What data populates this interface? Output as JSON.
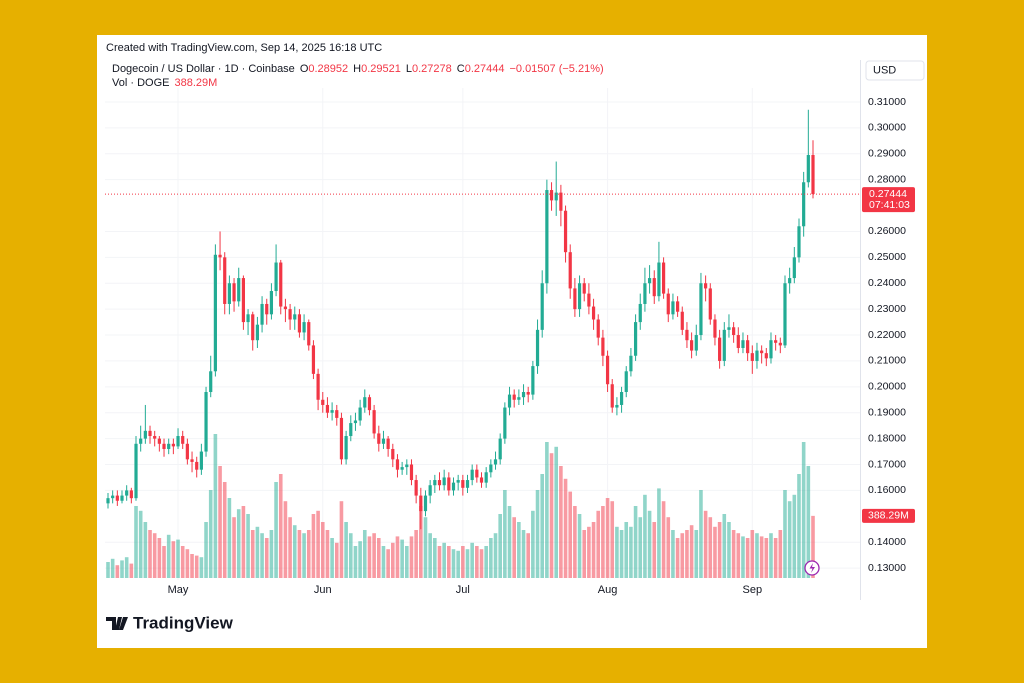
{
  "header": {
    "created": "Created with TradingView.com, Sep 14, 2025 16:18 UTC",
    "brand": "TradingView"
  },
  "legend": {
    "symbol": "Dogecoin / US Dollar · 1D · Coinbase",
    "o": "O",
    "h": "H",
    "l": "L",
    "c": "C",
    "change": "−0.01507 (−5.21%)",
    "vol": "Vol · DOGE",
    "volume_label": "388.29M"
  },
  "currency": "USD",
  "countdown": "07:41:03",
  "chart_data": {
    "type": "candlestick",
    "up_color": "#22ab94",
    "down_color": "#f23645",
    "grid": true,
    "ylim": [
      0.1254,
      0.3154
    ],
    "yticks": [
      {
        "value": 0.13,
        "label": "0.13000"
      },
      {
        "value": 0.14,
        "label": "0.14000"
      },
      {
        "value": 0.16,
        "label": "0.16000"
      },
      {
        "value": 0.17,
        "label": "0.17000"
      },
      {
        "value": 0.18,
        "label": "0.18000"
      },
      {
        "value": 0.19,
        "label": "0.19000"
      },
      {
        "value": 0.2,
        "label": "0.20000"
      },
      {
        "value": 0.21,
        "label": "0.21000"
      },
      {
        "value": 0.22,
        "label": "0.22000"
      },
      {
        "value": 0.23,
        "label": "0.23000"
      },
      {
        "value": 0.24,
        "label": "0.24000"
      },
      {
        "value": 0.25,
        "label": "0.25000"
      },
      {
        "value": 0.26,
        "label": "0.26000"
      },
      {
        "value": 0.28,
        "label": "0.28000"
      },
      {
        "value": 0.29,
        "label": "0.29000"
      },
      {
        "value": 0.3,
        "label": "0.30000"
      },
      {
        "value": 0.31,
        "label": "0.31000"
      }
    ],
    "categories": [
      null,
      null,
      null,
      null,
      null,
      null,
      null,
      null,
      null,
      null,
      null,
      null,
      null,
      null,
      null,
      "May",
      null,
      null,
      null,
      null,
      null,
      null,
      null,
      null,
      null,
      null,
      null,
      null,
      null,
      null,
      null,
      null,
      null,
      null,
      null,
      null,
      null,
      null,
      null,
      null,
      null,
      null,
      null,
      null,
      null,
      null,
      "Jun",
      null,
      null,
      null,
      null,
      null,
      null,
      null,
      null,
      null,
      null,
      null,
      null,
      null,
      null,
      null,
      null,
      null,
      null,
      null,
      null,
      null,
      null,
      null,
      null,
      null,
      null,
      null,
      null,
      null,
      "Jul",
      null,
      null,
      null,
      null,
      null,
      null,
      null,
      null,
      null,
      null,
      null,
      null,
      null,
      null,
      null,
      null,
      null,
      null,
      null,
      null,
      null,
      null,
      null,
      null,
      null,
      null,
      null,
      null,
      null,
      null,
      "Aug",
      null,
      null,
      null,
      null,
      null,
      null,
      null,
      null,
      null,
      null,
      null,
      null,
      null,
      null,
      null,
      null,
      null,
      null,
      null,
      null,
      null,
      null,
      null,
      null,
      null,
      null,
      null,
      null,
      null,
      null,
      "Sep",
      null,
      null,
      null,
      null,
      null,
      null,
      null,
      null,
      null,
      null,
      null,
      null,
      null
    ],
    "open": [
      0.155,
      0.157,
      0.158,
      0.156,
      0.158,
      0.16,
      0.157,
      0.178,
      0.18,
      0.183,
      0.181,
      0.18,
      0.178,
      0.176,
      0.178,
      0.177,
      0.181,
      0.178,
      0.172,
      0.171,
      0.168,
      0.175,
      0.198,
      0.206,
      0.251,
      0.25,
      0.232,
      0.24,
      0.233,
      0.242,
      0.225,
      0.228,
      0.218,
      0.224,
      0.232,
      0.228,
      0.237,
      0.248,
      0.231,
      0.23,
      0.226,
      0.228,
      0.221,
      0.225,
      0.216,
      0.205,
      0.195,
      0.193,
      0.19,
      0.191,
      0.188,
      0.172,
      0.181,
      0.186,
      0.187,
      0.192,
      0.196,
      0.191,
      0.182,
      0.178,
      0.18,
      0.176,
      0.172,
      0.168,
      0.169,
      0.17,
      0.164,
      0.158,
      0.152,
      0.158,
      0.162,
      0.164,
      0.162,
      0.165,
      0.16,
      0.163,
      0.164,
      0.161,
      0.164,
      0.168,
      0.165,
      0.163,
      0.167,
      0.17,
      0.172,
      0.18,
      0.192,
      0.197,
      0.195,
      0.196,
      0.198,
      0.197,
      0.208,
      0.222,
      0.24,
      0.276,
      0.272,
      0.275,
      0.268,
      0.252,
      0.238,
      0.23,
      0.24,
      0.236,
      0.231,
      0.226,
      0.219,
      0.212,
      0.201,
      0.192,
      0.193,
      0.198,
      0.206,
      0.212,
      0.225,
      0.232,
      0.24,
      0.242,
      0.235,
      0.248,
      0.236,
      0.228,
      0.233,
      0.229,
      0.222,
      0.218,
      0.214,
      0.22,
      0.24,
      0.238,
      0.226,
      0.219,
      0.21,
      0.222,
      0.223,
      0.22,
      0.215,
      0.218,
      0.213,
      0.21,
      0.214,
      0.213,
      0.211,
      0.218,
      0.217,
      0.216,
      0.24,
      0.242,
      0.25,
      0.262,
      0.279,
      0.28952
    ],
    "high": [
      0.159,
      0.16,
      0.16,
      0.16,
      0.162,
      0.161,
      0.181,
      0.185,
      0.193,
      0.185,
      0.183,
      0.181,
      0.18,
      0.18,
      0.18,
      0.184,
      0.183,
      0.18,
      0.175,
      0.173,
      0.178,
      0.2,
      0.212,
      0.255,
      0.26,
      0.252,
      0.243,
      0.242,
      0.246,
      0.243,
      0.23,
      0.229,
      0.227,
      0.235,
      0.234,
      0.24,
      0.255,
      0.249,
      0.234,
      0.232,
      0.231,
      0.23,
      0.228,
      0.226,
      0.218,
      0.207,
      0.198,
      0.196,
      0.194,
      0.193,
      0.19,
      0.183,
      0.189,
      0.19,
      0.195,
      0.199,
      0.197,
      0.193,
      0.185,
      0.183,
      0.181,
      0.178,
      0.174,
      0.171,
      0.172,
      0.172,
      0.166,
      0.161,
      0.16,
      0.164,
      0.166,
      0.167,
      0.168,
      0.167,
      0.165,
      0.166,
      0.166,
      0.166,
      0.17,
      0.17,
      0.167,
      0.169,
      0.172,
      0.175,
      0.182,
      0.194,
      0.2,
      0.199,
      0.199,
      0.201,
      0.2,
      0.21,
      0.226,
      0.245,
      0.28,
      0.279,
      0.287,
      0.278,
      0.27,
      0.255,
      0.242,
      0.243,
      0.242,
      0.24,
      0.234,
      0.228,
      0.222,
      0.214,
      0.203,
      0.196,
      0.2,
      0.208,
      0.215,
      0.228,
      0.236,
      0.246,
      0.247,
      0.245,
      0.256,
      0.25,
      0.238,
      0.236,
      0.235,
      0.231,
      0.225,
      0.221,
      0.224,
      0.244,
      0.243,
      0.24,
      0.228,
      0.222,
      0.225,
      0.228,
      0.225,
      0.223,
      0.221,
      0.22,
      0.216,
      0.217,
      0.216,
      0.215,
      0.221,
      0.22,
      0.219,
      0.243,
      0.246,
      0.254,
      0.265,
      0.283,
      0.307,
      0.29521
    ],
    "low": [
      0.153,
      0.155,
      0.154,
      0.155,
      0.156,
      0.155,
      0.156,
      0.175,
      0.178,
      0.178,
      0.177,
      0.175,
      0.173,
      0.174,
      0.174,
      0.176,
      0.176,
      0.17,
      0.167,
      0.165,
      0.166,
      0.173,
      0.196,
      0.204,
      0.245,
      0.228,
      0.228,
      0.229,
      0.231,
      0.222,
      0.22,
      0.214,
      0.215,
      0.221,
      0.224,
      0.226,
      0.235,
      0.228,
      0.225,
      0.222,
      0.222,
      0.219,
      0.218,
      0.214,
      0.203,
      0.191,
      0.19,
      0.188,
      0.187,
      0.185,
      0.17,
      0.17,
      0.179,
      0.183,
      0.185,
      0.19,
      0.189,
      0.18,
      0.175,
      0.176,
      0.173,
      0.169,
      0.165,
      0.166,
      0.166,
      0.162,
      0.155,
      0.145,
      0.15,
      0.155,
      0.159,
      0.16,
      0.16,
      0.158,
      0.158,
      0.16,
      0.158,
      0.159,
      0.162,
      0.163,
      0.161,
      0.161,
      0.165,
      0.168,
      0.17,
      0.178,
      0.189,
      0.192,
      0.193,
      0.193,
      0.194,
      0.195,
      0.205,
      0.219,
      0.236,
      0.268,
      0.266,
      0.262,
      0.248,
      0.234,
      0.227,
      0.227,
      0.233,
      0.228,
      0.222,
      0.216,
      0.208,
      0.198,
      0.19,
      0.189,
      0.19,
      0.196,
      0.204,
      0.21,
      0.222,
      0.229,
      0.236,
      0.232,
      0.233,
      0.234,
      0.225,
      0.226,
      0.227,
      0.22,
      0.215,
      0.211,
      0.212,
      0.218,
      0.233,
      0.224,
      0.216,
      0.207,
      0.208,
      0.219,
      0.217,
      0.213,
      0.213,
      0.21,
      0.205,
      0.207,
      0.209,
      0.208,
      0.209,
      0.214,
      0.213,
      0.215,
      0.236,
      0.24,
      0.248,
      0.258,
      0.277,
      0.27278
    ],
    "close": [
      0.157,
      0.158,
      0.156,
      0.158,
      0.16,
      0.157,
      0.178,
      0.18,
      0.183,
      0.181,
      0.18,
      0.178,
      0.176,
      0.178,
      0.177,
      0.181,
      0.178,
      0.172,
      0.171,
      0.168,
      0.175,
      0.198,
      0.206,
      0.251,
      0.25,
      0.232,
      0.24,
      0.233,
      0.242,
      0.225,
      0.228,
      0.218,
      0.224,
      0.232,
      0.228,
      0.237,
      0.248,
      0.231,
      0.23,
      0.226,
      0.228,
      0.221,
      0.225,
      0.216,
      0.205,
      0.195,
      0.193,
      0.19,
      0.191,
      0.188,
      0.172,
      0.181,
      0.186,
      0.187,
      0.192,
      0.196,
      0.191,
      0.182,
      0.178,
      0.18,
      0.176,
      0.172,
      0.168,
      0.169,
      0.17,
      0.164,
      0.158,
      0.152,
      0.158,
      0.162,
      0.164,
      0.162,
      0.165,
      0.16,
      0.163,
      0.164,
      0.161,
      0.164,
      0.168,
      0.165,
      0.163,
      0.167,
      0.17,
      0.172,
      0.18,
      0.192,
      0.197,
      0.195,
      0.196,
      0.198,
      0.197,
      0.208,
      0.222,
      0.24,
      0.276,
      0.272,
      0.275,
      0.268,
      0.252,
      0.238,
      0.23,
      0.24,
      0.236,
      0.231,
      0.226,
      0.219,
      0.212,
      0.201,
      0.192,
      0.193,
      0.198,
      0.206,
      0.212,
      0.225,
      0.232,
      0.24,
      0.242,
      0.235,
      0.248,
      0.236,
      0.228,
      0.233,
      0.229,
      0.222,
      0.218,
      0.214,
      0.22,
      0.24,
      0.238,
      0.226,
      0.219,
      0.21,
      0.222,
      0.223,
      0.22,
      0.215,
      0.218,
      0.213,
      0.21,
      0.214,
      0.213,
      0.211,
      0.218,
      0.217,
      0.216,
      0.24,
      0.242,
      0.25,
      0.262,
      0.279,
      0.28952,
      0.27444
    ],
    "volume": [
      100,
      120,
      80,
      110,
      130,
      90,
      450,
      420,
      350,
      300,
      280,
      250,
      200,
      270,
      230,
      240,
      200,
      180,
      150,
      140,
      130,
      350,
      550,
      900,
      700,
      600,
      500,
      380,
      430,
      450,
      400,
      300,
      320,
      280,
      250,
      300,
      600,
      650,
      480,
      380,
      330,
      300,
      280,
      300,
      400,
      420,
      350,
      300,
      250,
      220,
      480,
      350,
      280,
      200,
      230,
      300,
      260,
      280,
      250,
      200,
      180,
      220,
      260,
      240,
      200,
      260,
      300,
      450,
      380,
      280,
      250,
      200,
      220,
      200,
      180,
      170,
      200,
      180,
      220,
      200,
      180,
      200,
      250,
      280,
      400,
      550,
      450,
      380,
      350,
      300,
      280,
      420,
      550,
      650,
      850,
      780,
      820,
      700,
      620,
      540,
      450,
      400,
      300,
      320,
      350,
      420,
      450,
      500,
      480,
      320,
      300,
      350,
      320,
      450,
      380,
      520,
      420,
      350,
      560,
      480,
      380,
      300,
      250,
      280,
      300,
      330,
      300,
      550,
      420,
      380,
      320,
      350,
      400,
      350,
      300,
      280,
      260,
      250,
      300,
      280,
      260,
      250,
      280,
      250,
      300,
      550,
      480,
      520,
      650,
      850,
      700,
      388.29
    ]
  }
}
